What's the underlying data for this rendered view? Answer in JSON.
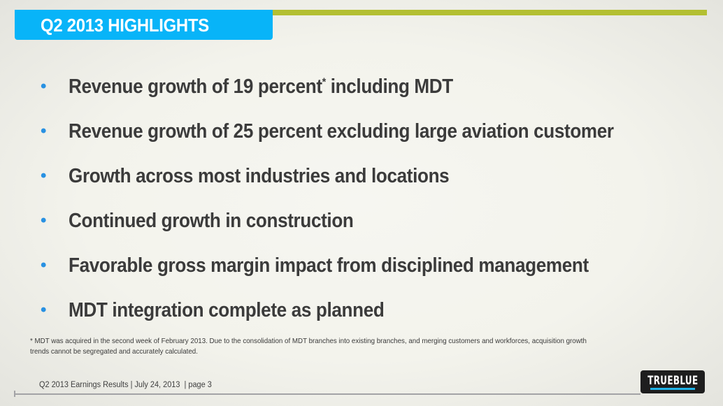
{
  "header": {
    "title": "Q2 2013 HIGHLIGHTS",
    "accent_color": "#08b4f8",
    "bar_color": "#b3bf32"
  },
  "bullets": [
    {
      "text": "Revenue growth of 19 percent",
      "sup": "*",
      "text_after": " including MDT"
    },
    {
      "text": "Revenue growth of 25 percent excluding large aviation customer"
    },
    {
      "text": "Growth across most industries and locations"
    },
    {
      "text": "Continued growth in construction"
    },
    {
      "text": "Favorable gross margin impact from disciplined management"
    },
    {
      "text": "MDT integration complete as planned"
    }
  ],
  "bullet_symbol": "•",
  "footnote": "* MDT was acquired in the second week of February 2013. Due to the consolidation of MDT branches into existing branches, and merging  customers and workforces, acquisition growth trends cannot be segregated and  accurately calculated.",
  "footer": {
    "text": "Q2 2013 Earnings Results | July 24, 2013  | page 3"
  },
  "logo": {
    "text": "TRUEBLUE",
    "underline_color": "#1fb5ea"
  }
}
